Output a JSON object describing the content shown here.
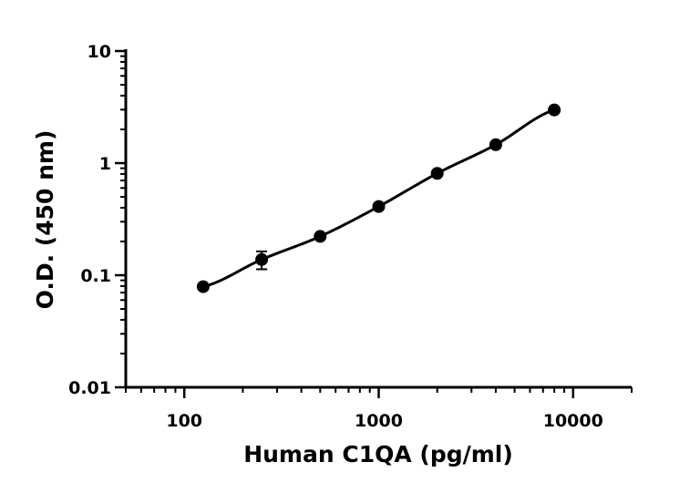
{
  "chart_data": {
    "type": "scatter",
    "xlabel": "Human C1QA (pg/ml)",
    "ylabel": "O.D. (450 nm)",
    "xscale": "log",
    "yscale": "log",
    "xlim": [
      50,
      20000
    ],
    "ylim": [
      0.01,
      10
    ],
    "xticks": [
      100,
      1000,
      10000
    ],
    "xtick_labels": [
      "100",
      "1000",
      "10000"
    ],
    "yticks": [
      0.01,
      0.1,
      1,
      10
    ],
    "ytick_labels": [
      "0.01",
      "0.1",
      "1",
      "10"
    ],
    "grid": false,
    "points": [
      {
        "x": 125,
        "y": 0.079,
        "err": 0.003
      },
      {
        "x": 250,
        "y": 0.138,
        "err": 0.025
      },
      {
        "x": 500,
        "y": 0.222,
        "err": 0.008
      },
      {
        "x": 1000,
        "y": 0.41,
        "err": 0.015
      },
      {
        "x": 2000,
        "y": 0.81,
        "err": 0.02
      },
      {
        "x": 4000,
        "y": 1.46,
        "err": 0.04
      },
      {
        "x": 8000,
        "y": 2.98,
        "err": 0.06
      }
    ],
    "fit_line": true
  }
}
